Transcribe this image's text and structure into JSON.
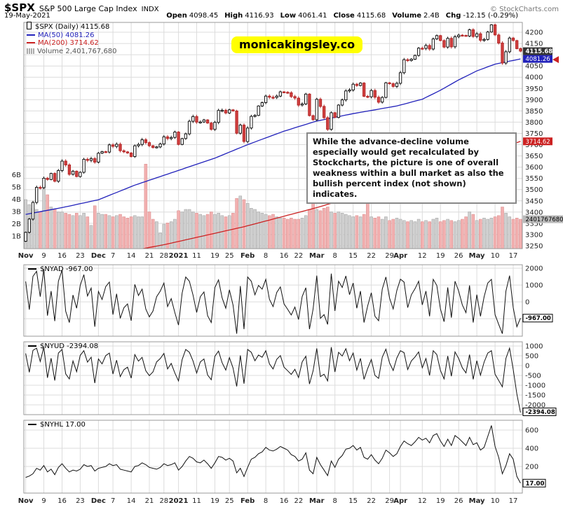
{
  "header": {
    "symbol": "$SPX",
    "name": "S&P 500 Large Cap Index",
    "exchange": "INDX",
    "copyright": "© StockCharts.com",
    "date": "19-May-2021",
    "quote": [
      {
        "label": "Open",
        "value": "4098.45"
      },
      {
        "label": "High",
        "value": "4116.93"
      },
      {
        "label": "Low",
        "value": "4061.41"
      },
      {
        "label": "Close",
        "value": "4115.68"
      },
      {
        "label": "Volume",
        "value": "2.4B"
      },
      {
        "label": "Chg",
        "value": "-12.15 (-0.29%)"
      }
    ]
  },
  "watermark": "monicakingsley.co",
  "annotation": "While the advance-decline volume especially would get recalculated by Stockcharts, the picture is one of overall weakness within a bull market as also the bullish percent index (not shown) indicates.",
  "main_chart": {
    "legend": {
      "symbol": "$SPX (Daily) 4115.68",
      "ma50": "MA(50) 4081.26",
      "ma200": "MA(200) 3714.62",
      "volume": "Volume 2,401,767,680"
    },
    "badges": {
      "last": "4115.68",
      "ma50": "4081.26",
      "ma200": "3714.62",
      "volume": "2401767680"
    },
    "colors": {
      "ma50": "#2222bb",
      "ma200": "#cc2222",
      "down_candle": "#d04040",
      "watermark_bg": "#ffff00"
    }
  },
  "panels": [
    {
      "legend": "$NYAD -967.00",
      "badge": "-967.00"
    },
    {
      "legend": "$NYUD -2394.08",
      "badge": "-2394.08"
    },
    {
      "legend": "$NYHL 17.00",
      "badge": "17.00"
    }
  ],
  "chart_data": [
    {
      "type": "candlestick",
      "symbol": "$SPX",
      "timeframe": "Daily",
      "last_close": 4115.68,
      "y_range": [
        3250,
        4200
      ],
      "y_ticks": [
        4200,
        4150,
        4100,
        4050,
        4000,
        3950,
        3900,
        3850,
        3800,
        3750,
        3700,
        3650,
        3600,
        3550,
        3500,
        3450,
        3400,
        3350,
        3300,
        3250
      ],
      "volume_axis": [
        {
          "value": 6,
          "label": "6B"
        },
        {
          "value": 5,
          "label": "5B"
        },
        {
          "value": 4,
          "label": "4B"
        },
        {
          "value": 3,
          "label": "3B"
        },
        {
          "value": 2,
          "label": "2B"
        },
        {
          "value": 1,
          "label": "1B"
        }
      ],
      "x_ticks": [
        {
          "i": 0,
          "label": "Nov",
          "month": true
        },
        {
          "i": 5,
          "label": "9"
        },
        {
          "i": 10,
          "label": "16"
        },
        {
          "i": 15,
          "label": "23"
        },
        {
          "i": 20,
          "label": "Dec",
          "month": true
        },
        {
          "i": 24,
          "label": "7"
        },
        {
          "i": 29,
          "label": "14"
        },
        {
          "i": 34,
          "label": "21"
        },
        {
          "i": 38,
          "label": "28"
        },
        {
          "i": 42,
          "label": "2021",
          "month": true
        },
        {
          "i": 47,
          "label": "11"
        },
        {
          "i": 52,
          "label": "19"
        },
        {
          "i": 56,
          "label": "25"
        },
        {
          "i": 61,
          "label": "Feb",
          "month": true
        },
        {
          "i": 66,
          "label": "8"
        },
        {
          "i": 71,
          "label": "16"
        },
        {
          "i": 75,
          "label": "22"
        },
        {
          "i": 80,
          "label": "Mar",
          "month": true
        },
        {
          "i": 85,
          "label": "8"
        },
        {
          "i": 90,
          "label": "15"
        },
        {
          "i": 95,
          "label": "22"
        },
        {
          "i": 100,
          "label": "29"
        },
        {
          "i": 103,
          "label": "Apr",
          "month": true
        },
        {
          "i": 109,
          "label": "12"
        },
        {
          "i": 114,
          "label": "19"
        },
        {
          "i": 119,
          "label": "26"
        },
        {
          "i": 124,
          "label": "May",
          "month": true
        },
        {
          "i": 129,
          "label": "10"
        },
        {
          "i": 134,
          "label": "17"
        }
      ],
      "closes": [
        3310,
        3369,
        3443,
        3510,
        3509,
        3551,
        3545,
        3572,
        3537,
        3585,
        3627,
        3610,
        3568,
        3582,
        3558,
        3577,
        3635,
        3630,
        3638,
        3622,
        3662,
        3669,
        3667,
        3699,
        3692,
        3702,
        3673,
        3668,
        3663,
        3647,
        3695,
        3701,
        3722,
        3709,
        3695,
        3687,
        3690,
        3703,
        3735,
        3727,
        3732,
        3756,
        3701,
        3727,
        3748,
        3804,
        3825,
        3800,
        3801,
        3810,
        3796,
        3768,
        3799,
        3852,
        3853,
        3841,
        3855,
        3850,
        3751,
        3787,
        3714,
        3774,
        3826,
        3830,
        3872,
        3887,
        3916,
        3911,
        3910,
        3916,
        3935,
        3933,
        3931,
        3914,
        3907,
        3876,
        3881,
        3925,
        3829,
        3811,
        3902,
        3870,
        3820,
        3768,
        3842,
        3821,
        3876,
        3899,
        3939,
        3943,
        3969,
        3963,
        3974,
        3915,
        3913,
        3941,
        3911,
        3889,
        3910,
        3975,
        3971,
        3959,
        3973,
        4020,
        4078,
        4074,
        4080,
        4097,
        4129,
        4128,
        4141,
        4125,
        4170,
        4185,
        4163,
        4134,
        4173,
        4135,
        4180,
        4187,
        4186,
        4183,
        4211,
        4181,
        4193,
        4164,
        4168,
        4201,
        4233,
        4188,
        4152,
        4063,
        4113,
        4174,
        4163,
        4127,
        4115.68
      ],
      "volumes_billions": [
        4.0,
        3.6,
        3.3,
        3.2,
        3.0,
        5.2,
        4.4,
        3.4,
        3.2,
        3.0,
        3.0,
        2.9,
        2.8,
        2.7,
        2.9,
        2.7,
        2.9,
        2.6,
        1.9,
        3.5,
        2.9,
        2.8,
        2.8,
        2.7,
        2.6,
        2.7,
        2.8,
        2.6,
        2.5,
        2.6,
        2.7,
        2.6,
        2.6,
        6.9,
        3.0,
        2.4,
        2.2,
        1.3,
        2.0,
        2.1,
        2.2,
        2.4,
        3.1,
        3.0,
        3.2,
        3.2,
        3.0,
        2.9,
        2.8,
        2.7,
        2.8,
        3.0,
        2.8,
        2.9,
        2.7,
        2.6,
        2.7,
        2.9,
        4.1,
        4.3,
        4.0,
        3.7,
        3.3,
        3.2,
        3.0,
        2.9,
        2.8,
        2.7,
        2.8,
        2.6,
        2.5,
        2.5,
        2.4,
        2.5,
        2.4,
        2.4,
        2.5,
        2.7,
        3.2,
        4.9,
        3.2,
        3.1,
        3.3,
        3.4,
        3.0,
        2.9,
        3.0,
        2.9,
        2.8,
        2.7,
        2.6,
        2.7,
        2.6,
        2.8,
        5.4,
        2.6,
        2.5,
        2.6,
        2.4,
        2.6,
        2.3,
        2.4,
        2.5,
        2.4,
        2.3,
        2.2,
        2.3,
        2.2,
        2.4,
        2.2,
        2.3,
        2.2,
        2.4,
        2.5,
        2.2,
        2.3,
        2.4,
        2.3,
        2.2,
        2.3,
        2.4,
        2.6,
        3.0,
        2.8,
        2.3,
        2.4,
        2.5,
        2.4,
        2.5,
        2.6,
        2.7,
        3.4,
        2.9,
        2.6,
        2.4,
        2.5,
        2.4
      ],
      "ma50": {
        "last": 4081.26,
        "points": [
          [
            0,
            3390
          ],
          [
            10,
            3420
          ],
          [
            20,
            3455
          ],
          [
            30,
            3520
          ],
          [
            41,
            3580
          ],
          [
            52,
            3640
          ],
          [
            61,
            3700
          ],
          [
            71,
            3760
          ],
          [
            80,
            3805
          ],
          [
            90,
            3838
          ],
          [
            102,
            3872
          ],
          [
            109,
            3902
          ],
          [
            114,
            3942
          ],
          [
            119,
            3988
          ],
          [
            124,
            4028
          ],
          [
            129,
            4058
          ],
          [
            136,
            4081.26
          ]
        ]
      },
      "ma200": {
        "last": 3714.62,
        "points": [
          [
            0,
            3140
          ],
          [
            20,
            3200
          ],
          [
            38,
            3255
          ],
          [
            60,
            3335
          ],
          [
            80,
            3420
          ],
          [
            103,
            3530
          ],
          [
            114,
            3585
          ],
          [
            124,
            3650
          ],
          [
            136,
            3714.62
          ]
        ]
      }
    },
    {
      "type": "line",
      "symbol": "$NYAD",
      "last": -967.0,
      "y_ticks": [
        2000,
        1000,
        0,
        -1000
      ],
      "y_range": [
        -2200,
        2200
      ],
      "values": [
        1218,
        -463,
        1520,
        1820,
        310,
        1950,
        -820,
        640,
        -1140,
        1230,
        1890,
        -560,
        -1230,
        410,
        -380,
        980,
        1620,
        350,
        820,
        -1480,
        620,
        140,
        910,
        1180,
        -760,
        480,
        -980,
        -350,
        -120,
        -1120,
        1040,
        380,
        760,
        -420,
        -890,
        -540,
        310,
        640,
        1120,
        -280,
        190,
        -640,
        -1380,
        530,
        1480,
        1230,
        410,
        -630,
        310,
        590,
        -820,
        -1230,
        860,
        1310,
        240,
        -380,
        720,
        -190,
        -1890,
        940,
        -1620,
        1480,
        1230,
        420,
        980,
        760,
        1340,
        150,
        -280,
        560,
        890,
        -120,
        -440,
        -780,
        -310,
        -1050,
        320,
        840,
        -1620,
        -420,
        1560,
        -980,
        -760,
        -1340,
        1680,
        -540,
        1230,
        860,
        1540,
        430,
        1120,
        -380,
        640,
        -1230,
        -240,
        540,
        -860,
        -1120,
        760,
        1480,
        230,
        -420,
        680,
        1350,
        1180,
        -340,
        420,
        780,
        1230,
        -180,
        640,
        -860,
        1340,
        980,
        -420,
        -1180,
        860,
        -940,
        1230,
        640,
        -180,
        -640,
        980,
        -1230,
        430,
        -860,
        310,
        1120,
        1340,
        -760,
        -1340,
        -1890,
        640,
        1560,
        -340,
        -1480,
        -967
      ]
    },
    {
      "type": "line",
      "symbol": "$NYUD",
      "last": -2394.08,
      "y_ticks": [
        1000,
        500,
        0,
        -500,
        -1000,
        -1500,
        -2000
      ],
      "y_range": [
        -2500,
        1150
      ],
      "values": [
        620,
        -340,
        780,
        890,
        210,
        940,
        -620,
        380,
        -760,
        640,
        830,
        -420,
        -680,
        240,
        -310,
        520,
        760,
        180,
        430,
        -890,
        340,
        90,
        510,
        640,
        -430,
        280,
        -560,
        -210,
        -80,
        -640,
        560,
        230,
        420,
        -260,
        -510,
        -320,
        190,
        360,
        620,
        -170,
        110,
        -380,
        -780,
        310,
        820,
        680,
        240,
        -380,
        190,
        340,
        -480,
        -720,
        480,
        740,
        150,
        -230,
        410,
        -120,
        -1060,
        520,
        -920,
        820,
        680,
        250,
        540,
        430,
        760,
        90,
        -170,
        320,
        510,
        -80,
        -260,
        -450,
        -190,
        -610,
        190,
        480,
        -940,
        -260,
        880,
        -560,
        -440,
        -780,
        940,
        -320,
        680,
        490,
        860,
        250,
        640,
        -230,
        370,
        -700,
        -150,
        310,
        -500,
        -650,
        430,
        840,
        140,
        -250,
        390,
        760,
        660,
        -200,
        240,
        440,
        700,
        -110,
        360,
        -500,
        760,
        560,
        -250,
        -680,
        490,
        -540,
        700,
        360,
        -110,
        -370,
        560,
        -700,
        250,
        -490,
        180,
        640,
        760,
        -440,
        -760,
        -1080,
        370,
        890,
        -200,
        -1450,
        -2394.08
      ]
    },
    {
      "type": "line",
      "symbol": "$NYHL",
      "last": 17.0,
      "y_ticks": [
        600,
        400,
        200
      ],
      "y_range": [
        0,
        680
      ],
      "values": [
        80,
        95,
        120,
        180,
        160,
        210,
        140,
        170,
        110,
        190,
        230,
        180,
        140,
        160,
        150,
        170,
        220,
        200,
        210,
        150,
        180,
        190,
        200,
        230,
        210,
        220,
        170,
        160,
        150,
        140,
        200,
        210,
        240,
        220,
        190,
        180,
        170,
        190,
        230,
        210,
        220,
        240,
        160,
        200,
        260,
        310,
        290,
        250,
        240,
        270,
        230,
        180,
        240,
        310,
        300,
        270,
        290,
        260,
        130,
        180,
        90,
        190,
        280,
        300,
        340,
        360,
        410,
        380,
        370,
        390,
        420,
        400,
        380,
        330,
        310,
        260,
        280,
        350,
        160,
        120,
        300,
        220,
        160,
        100,
        260,
        190,
        280,
        320,
        390,
        400,
        430,
        380,
        410,
        300,
        280,
        330,
        270,
        230,
        290,
        380,
        350,
        310,
        340,
        420,
        480,
        450,
        430,
        470,
        520,
        490,
        510,
        460,
        540,
        560,
        480,
        420,
        500,
        430,
        540,
        510,
        470,
        430,
        520,
        440,
        460,
        380,
        410,
        530,
        650,
        420,
        300,
        120,
        210,
        340,
        280,
        90,
        17
      ]
    }
  ]
}
